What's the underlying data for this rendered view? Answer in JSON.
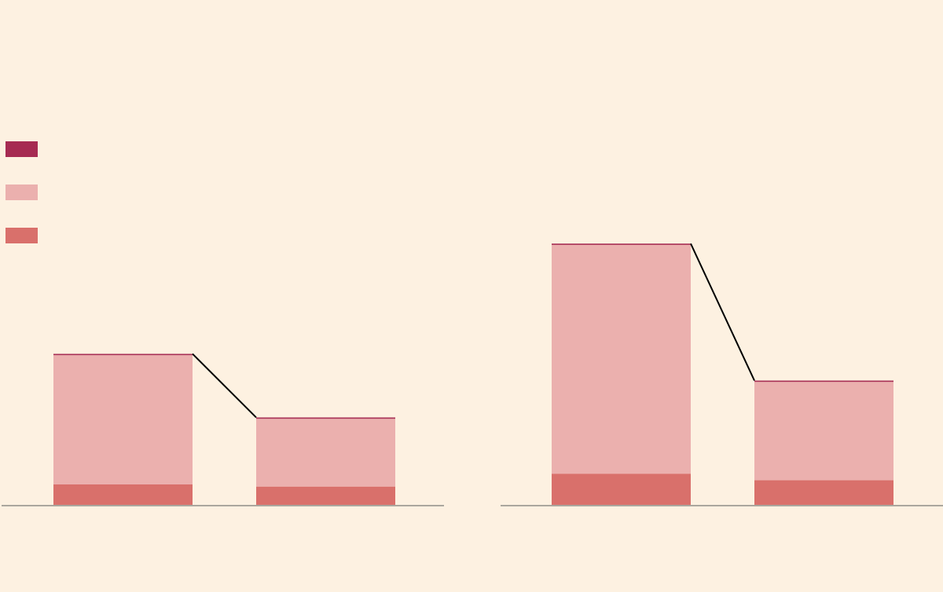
{
  "background": "#fdf1e1",
  "chart_data": [
    {
      "type": "bar",
      "stacked": true,
      "categories": [
        "",
        ""
      ],
      "series": [
        {
          "color": "#d9706b",
          "values": [
            10,
            9
          ]
        },
        {
          "color": "#ebb0ae",
          "values": [
            61,
            32
          ]
        },
        {
          "color": "#a62b52",
          "values": [
            0.6,
            0.6
          ]
        }
      ],
      "connector": {
        "color": "#000000",
        "style": "line joining bar tops"
      },
      "baseline_color": "#aaa79e",
      "ylim": [
        0,
        160
      ],
      "grid": false,
      "legend": "left"
    },
    {
      "type": "bar",
      "stacked": true,
      "categories": [
        "",
        ""
      ],
      "series": [
        {
          "color": "#d9706b",
          "values": [
            15,
            12
          ]
        },
        {
          "color": "#ebb0ae",
          "values": [
            108,
            46.4
          ]
        },
        {
          "color": "#a62b52",
          "values": [
            0.6,
            0.6
          ]
        }
      ],
      "connector": {
        "color": "#000000",
        "style": "line joining bar tops"
      },
      "baseline_color": "#aaa79e",
      "ylim": [
        0,
        160
      ],
      "grid": false,
      "legend": "left"
    }
  ],
  "legend": {
    "items": [
      {
        "color": "#a62b52",
        "label": ""
      },
      {
        "color": "#ebb0ae",
        "label": ""
      },
      {
        "color": "#d9706b",
        "label": ""
      }
    ]
  }
}
